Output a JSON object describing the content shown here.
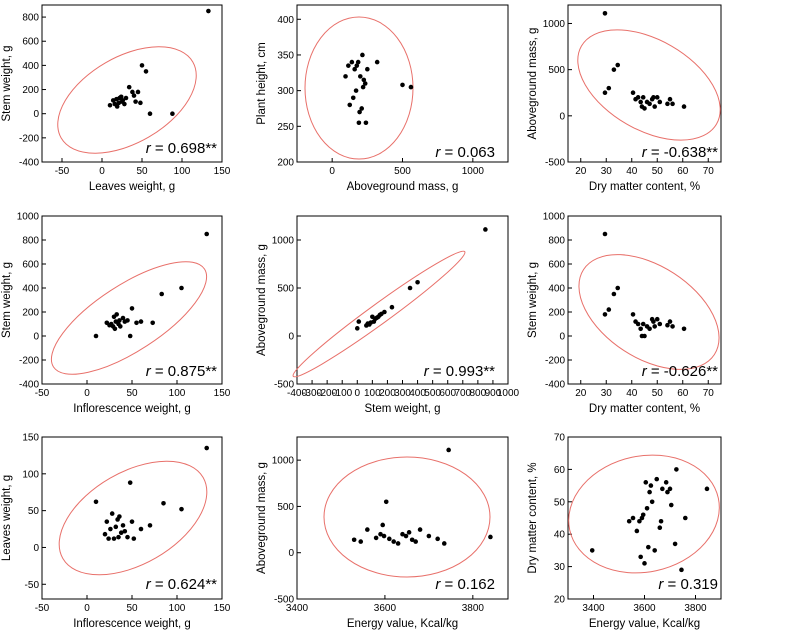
{
  "chart_data": [
    {
      "type": "scatter",
      "id": "p1",
      "xlabel": "Leaves weight, g",
      "ylabel": "Stem weight, g",
      "xlim": [
        -75,
        150
      ],
      "ylim": [
        -400,
        900
      ],
      "xticks": [
        -50,
        0,
        50,
        100,
        150
      ],
      "yticks": [
        -400,
        -200,
        0,
        200,
        400,
        600,
        800
      ],
      "r_prefix": "r",
      "r_value": " = 0.698**",
      "points": [
        [
          10,
          70
        ],
        [
          14,
          110
        ],
        [
          16,
          80
        ],
        [
          18,
          120
        ],
        [
          19,
          60
        ],
        [
          21,
          90
        ],
        [
          22,
          130
        ],
        [
          24,
          140
        ],
        [
          25,
          100
        ],
        [
          26,
          110
        ],
        [
          28,
          80
        ],
        [
          30,
          130
        ],
        [
          34,
          220
        ],
        [
          38,
          180
        ],
        [
          40,
          150
        ],
        [
          42,
          100
        ],
        [
          45,
          180
        ],
        [
          48,
          90
        ],
        [
          50,
          400
        ],
        [
          55,
          350
        ],
        [
          60,
          0
        ],
        [
          88,
          0
        ],
        [
          133,
          850
        ]
      ],
      "ellipse": {
        "cx": 42,
        "cy": 140,
        "rx": 100,
        "ry": 170,
        "angle_deg": -36
      }
    },
    {
      "type": "scatter",
      "id": "p2",
      "xlabel": "Aboveground mass, g",
      "ylabel": "Plant height, cm",
      "xlim": [
        -250,
        1250
      ],
      "ylim": [
        200,
        420
      ],
      "xticks": [
        0,
        500,
        1000
      ],
      "yticks": [
        200,
        250,
        300,
        350,
        400
      ],
      "r_prefix": "r",
      "r_value": " = 0.063",
      "points": [
        [
          95,
          320
        ],
        [
          115,
          335
        ],
        [
          125,
          280
        ],
        [
          140,
          340
        ],
        [
          150,
          290
        ],
        [
          160,
          330
        ],
        [
          170,
          300
        ],
        [
          175,
          335
        ],
        [
          185,
          340
        ],
        [
          190,
          255
        ],
        [
          195,
          270
        ],
        [
          200,
          320
        ],
        [
          210,
          275
        ],
        [
          215,
          350
        ],
        [
          220,
          305
        ],
        [
          225,
          315
        ],
        [
          235,
          310
        ],
        [
          240,
          255
        ],
        [
          250,
          330
        ],
        [
          320,
          340
        ],
        [
          500,
          308
        ],
        [
          560,
          305
        ]
      ],
      "ellipse": {
        "cx": 200,
        "cy": 310,
        "rx": 450,
        "ry": 100,
        "angle_deg": 0
      }
    },
    {
      "type": "scatter",
      "id": "p3",
      "xlabel": "Dry matter content, %",
      "ylabel": "Aboveground mass, g",
      "xlim": [
        15,
        75
      ],
      "ylim": [
        -500,
        1200
      ],
      "xticks": [
        20,
        30,
        40,
        50,
        60,
        70
      ],
      "yticks": [
        -500,
        0,
        500,
        1000
      ],
      "r_prefix": "r",
      "r_value": " = -0.638**",
      "points": [
        [
          29.5,
          1110
        ],
        [
          29.5,
          250
        ],
        [
          31,
          300
        ],
        [
          33,
          500
        ],
        [
          34.5,
          550
        ],
        [
          40.5,
          250
        ],
        [
          41.5,
          180
        ],
        [
          42.5,
          200
        ],
        [
          43.5,
          150
        ],
        [
          44,
          100
        ],
        [
          44.5,
          200
        ],
        [
          45,
          80
        ],
        [
          46,
          150
        ],
        [
          47,
          130
        ],
        [
          48,
          180
        ],
        [
          48.5,
          200
        ],
        [
          49,
          100
        ],
        [
          50,
          200
        ],
        [
          51,
          150
        ],
        [
          54,
          130
        ],
        [
          55,
          180
        ],
        [
          56,
          130
        ],
        [
          60.5,
          100
        ]
      ],
      "ellipse": {
        "cx": 45,
        "cy": 250,
        "rx": 20,
        "ry": 550,
        "angle_deg": 0
      }
    },
    {
      "type": "scatter",
      "id": "p4",
      "xlabel": "Inflorescence weight, g",
      "ylabel": "Stem weight, g",
      "xlim": [
        -50,
        150
      ],
      "ylim": [
        -400,
        1000
      ],
      "xticks": [
        -50,
        0,
        50,
        100,
        150
      ],
      "yticks": [
        -400,
        -200,
        0,
        200,
        400,
        600,
        800,
        1000
      ],
      "r_prefix": "r",
      "r_value": " = 0.875**",
      "points": [
        [
          10,
          0
        ],
        [
          22,
          110
        ],
        [
          25,
          90
        ],
        [
          27,
          100
        ],
        [
          29,
          80
        ],
        [
          30,
          160
        ],
        [
          31,
          60
        ],
        [
          32,
          120
        ],
        [
          33,
          180
        ],
        [
          35,
          100
        ],
        [
          36,
          130
        ],
        [
          37,
          80
        ],
        [
          40,
          150
        ],
        [
          42,
          120
        ],
        [
          45,
          130
        ],
        [
          48,
          0
        ],
        [
          50,
          230
        ],
        [
          55,
          110
        ],
        [
          60,
          120
        ],
        [
          73,
          110
        ],
        [
          83,
          350
        ],
        [
          105,
          400
        ],
        [
          133,
          850
        ]
      ],
      "ellipse": {
        "cx": 55,
        "cy": 180,
        "rx": 95,
        "ry": 420,
        "angle_deg": 0
      }
    },
    {
      "type": "scatter",
      "id": "p5",
      "xlabel": "Stem weight, g",
      "ylabel": "Aboveground mass, g",
      "xlim": [
        -400,
        1000
      ],
      "ylim": [
        -500,
        1250
      ],
      "xticks": [
        -400,
        -300,
        -200,
        -100,
        0,
        100,
        200,
        300,
        400,
        500,
        600,
        700,
        800,
        900,
        1000
      ],
      "yticks": [
        -500,
        0,
        500,
        1000
      ],
      "r_prefix": "r",
      "r_value": " = 0.993**",
      "points": [
        [
          0,
          80
        ],
        [
          10,
          150
        ],
        [
          60,
          110
        ],
        [
          70,
          130
        ],
        [
          80,
          120
        ],
        [
          90,
          140
        ],
        [
          100,
          200
        ],
        [
          110,
          150
        ],
        [
          120,
          180
        ],
        [
          130,
          190
        ],
        [
          140,
          200
        ],
        [
          150,
          220
        ],
        [
          160,
          230
        ],
        [
          180,
          250
        ],
        [
          230,
          300
        ],
        [
          350,
          500
        ],
        [
          400,
          560
        ],
        [
          850,
          1110
        ]
      ],
      "ellipse": {
        "cx": 150,
        "cy": 250,
        "rx": 600,
        "ry": 60,
        "angle_deg": 0
      }
    },
    {
      "type": "scatter",
      "id": "p6",
      "xlabel": "Dry matter content, %",
      "ylabel": "Stem weight, g",
      "xlim": [
        15,
        75
      ],
      "ylim": [
        -400,
        1000
      ],
      "xticks": [
        20,
        30,
        40,
        50,
        60,
        70
      ],
      "yticks": [
        -400,
        -200,
        0,
        200,
        400,
        600,
        800,
        1000
      ],
      "r_prefix": "r",
      "r_value": " = -0.626**",
      "points": [
        [
          29.5,
          850
        ],
        [
          29.5,
          180
        ],
        [
          31,
          220
        ],
        [
          33,
          350
        ],
        [
          34.5,
          400
        ],
        [
          40.5,
          180
        ],
        [
          41.5,
          120
        ],
        [
          42.5,
          100
        ],
        [
          43.5,
          60
        ],
        [
          44,
          0
        ],
        [
          44.5,
          100
        ],
        [
          45,
          0
        ],
        [
          46,
          80
        ],
        [
          47,
          60
        ],
        [
          48,
          140
        ],
        [
          48.5,
          120
        ],
        [
          49,
          80
        ],
        [
          50,
          140
        ],
        [
          51,
          100
        ],
        [
          54,
          90
        ],
        [
          55,
          120
        ],
        [
          56,
          80
        ],
        [
          60.5,
          60
        ]
      ],
      "ellipse": {
        "cx": 45,
        "cy": 180,
        "rx": 20,
        "ry": 430,
        "angle_deg": 0
      }
    },
    {
      "type": "scatter",
      "id": "p7",
      "xlabel": "Inflorescence weight, g",
      "ylabel": "Leaves weight, g",
      "xlim": [
        -50,
        150
      ],
      "ylim": [
        -70,
        150
      ],
      "xticks": [
        -50,
        0,
        50,
        100,
        150
      ],
      "yticks": [
        -50,
        0,
        50,
        100,
        150
      ],
      "r_prefix": "r",
      "r_value": " = 0.624**",
      "points": [
        [
          10,
          62
        ],
        [
          20,
          18
        ],
        [
          22,
          35
        ],
        [
          24,
          12
        ],
        [
          26,
          25
        ],
        [
          28,
          46
        ],
        [
          30,
          12
        ],
        [
          32,
          28
        ],
        [
          34,
          38
        ],
        [
          35,
          14
        ],
        [
          36,
          42
        ],
        [
          38,
          20
        ],
        [
          40,
          30
        ],
        [
          42,
          22
        ],
        [
          45,
          14
        ],
        [
          48,
          88
        ],
        [
          50,
          35
        ],
        [
          52,
          12
        ],
        [
          60,
          25
        ],
        [
          70,
          30
        ],
        [
          85,
          60
        ],
        [
          105,
          52
        ],
        [
          133,
          135
        ]
      ],
      "ellipse": {
        "cx": 58,
        "cy": 35,
        "rx": 85,
        "ry": 80,
        "angle_deg": 0
      }
    },
    {
      "type": "scatter",
      "id": "p8",
      "xlabel": "Energy value, Kcal/kg",
      "ylabel": "Aboveground mass, g",
      "xlim": [
        3400,
        3880
      ],
      "ylim": [
        -500,
        1250
      ],
      "xticks": [
        3400,
        3600,
        3800
      ],
      "yticks": [
        -500,
        0,
        500,
        1000
      ],
      "r_prefix": "r",
      "r_value": " = 0.162",
      "points": [
        [
          3530,
          140
        ],
        [
          3545,
          120
        ],
        [
          3560,
          250
        ],
        [
          3580,
          160
        ],
        [
          3590,
          200
        ],
        [
          3595,
          300
        ],
        [
          3598,
          180
        ],
        [
          3603,
          550
        ],
        [
          3610,
          150
        ],
        [
          3620,
          120
        ],
        [
          3630,
          100
        ],
        [
          3640,
          200
        ],
        [
          3648,
          180
        ],
        [
          3655,
          220
        ],
        [
          3662,
          140
        ],
        [
          3670,
          120
        ],
        [
          3680,
          250
        ],
        [
          3700,
          180
        ],
        [
          3720,
          150
        ],
        [
          3735,
          100
        ],
        [
          3745,
          1110
        ],
        [
          3840,
          170
        ]
      ],
      "ellipse": {
        "cx": 3690,
        "cy": 200,
        "rx": 170,
        "ry": 480,
        "angle_deg": 0
      }
    },
    {
      "type": "scatter",
      "id": "p9",
      "xlabel": "Energy value, Kcal/kg",
      "ylabel": "Dry matter content, %",
      "xlim": [
        3300,
        3900
      ],
      "ylim": [
        20,
        70
      ],
      "xticks": [
        3400,
        3600,
        3800
      ],
      "yticks": [
        20,
        30,
        40,
        50,
        60,
        70
      ],
      "r_prefix": "r",
      "r_value": " = 0.319",
      "points": [
        [
          3395,
          35
        ],
        [
          3540,
          44
        ],
        [
          3555,
          45
        ],
        [
          3570,
          41
        ],
        [
          3580,
          44
        ],
        [
          3585,
          33
        ],
        [
          3590,
          45
        ],
        [
          3595,
          46
        ],
        [
          3600,
          31
        ],
        [
          3605,
          56
        ],
        [
          3610,
          48
        ],
        [
          3615,
          36
        ],
        [
          3620,
          53
        ],
        [
          3625,
          55
        ],
        [
          3630,
          50
        ],
        [
          3640,
          35
        ],
        [
          3648,
          57
        ],
        [
          3660,
          42
        ],
        [
          3665,
          44
        ],
        [
          3670,
          54
        ],
        [
          3685,
          56
        ],
        [
          3690,
          53
        ],
        [
          3700,
          54
        ],
        [
          3705,
          49
        ],
        [
          3720,
          37
        ],
        [
          3725,
          60
        ],
        [
          3745,
          29
        ],
        [
          3760,
          45
        ],
        [
          3845,
          54
        ]
      ],
      "ellipse": {
        "cx": 3640,
        "cy": 47,
        "rx": 230,
        "ry": 16,
        "angle_deg": 0
      }
    }
  ]
}
